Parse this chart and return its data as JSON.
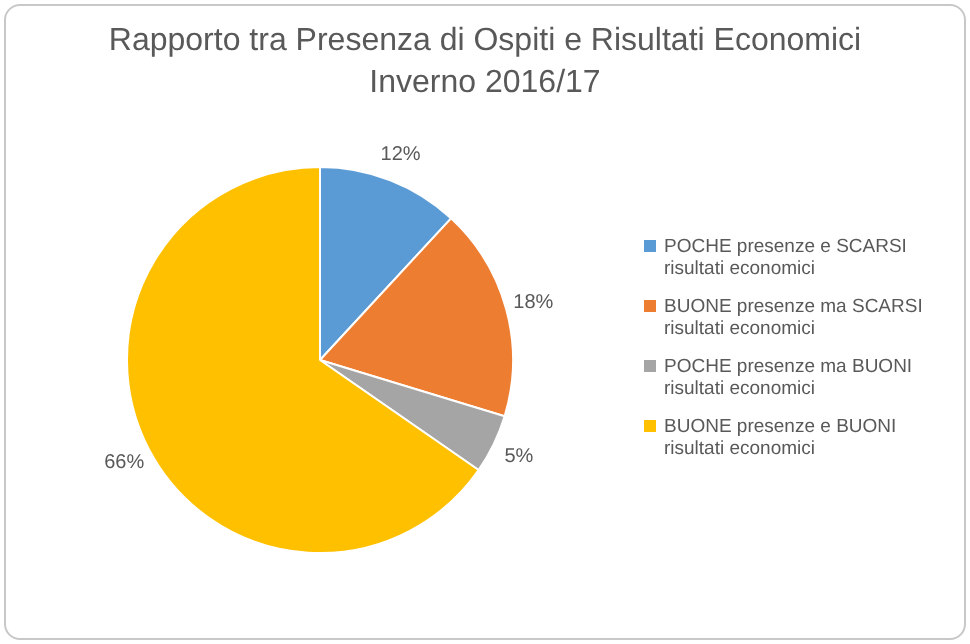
{
  "chart_data": {
    "type": "pie",
    "title": "Rapporto tra Presenza di Ospiti e Risultati Economici",
    "subtitle": "Inverno 2016/17",
    "categories": [
      "POCHE presenze e SCARSI risultati economici",
      "BUONE presenze ma SCARSI risultati economici",
      "POCHE presenze ma BUONI risultati economici",
      "BUONE presenze e BUONI risultati economici"
    ],
    "values": [
      12,
      18,
      5,
      66
    ],
    "colors": [
      "#5b9bd5",
      "#ed7d31",
      "#a5a5a5",
      "#ffc000"
    ],
    "value_labels": [
      "12%",
      "18%",
      "5%",
      "66%"
    ],
    "legend": "right"
  }
}
